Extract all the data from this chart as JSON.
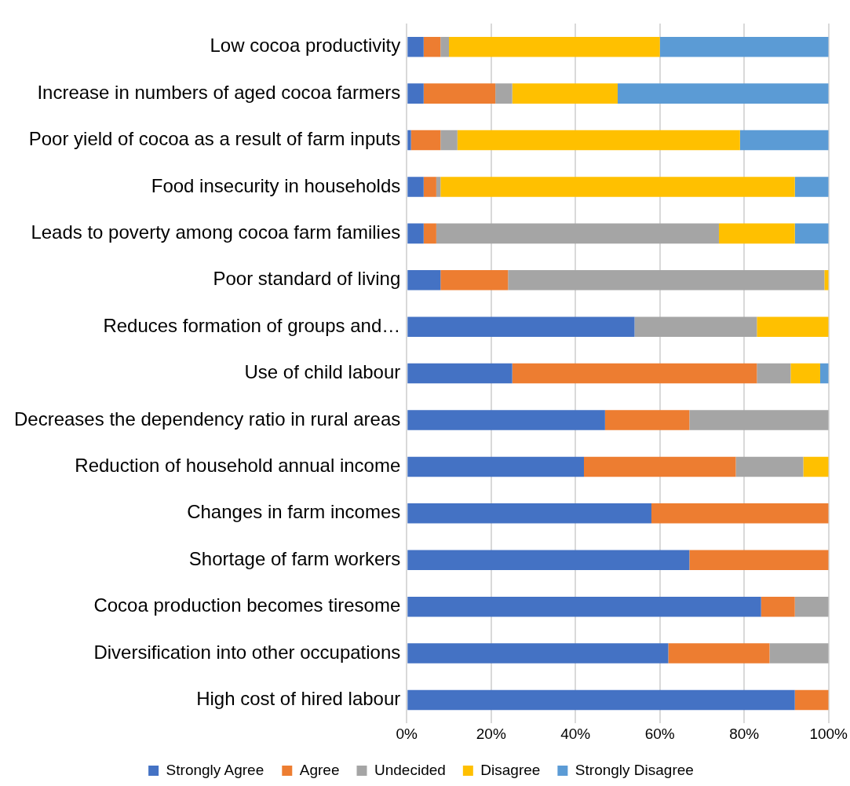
{
  "chart_data": {
    "type": "bar",
    "orientation": "horizontal",
    "stacked": true,
    "categories": [
      "Low cocoa productivity",
      "Increase in numbers of aged cocoa farmers",
      "Poor yield of cocoa as a result of farm inputs",
      "Food insecurity in households",
      "Leads to poverty among cocoa farm families",
      "Poor standard of living",
      "Reduces formation of groups and…",
      "Use of child labour",
      "Decreases the dependency ratio in rural areas",
      "Reduction of household annual income",
      "Changes in farm incomes",
      "Shortage of farm workers",
      "Cocoa production becomes tiresome",
      "Diversification into other occupations",
      "High cost of hired labour"
    ],
    "series": [
      {
        "name": "Strongly Agree",
        "color": "#4472c4",
        "values": [
          4,
          4,
          1,
          4,
          4,
          8,
          54,
          25,
          47,
          42,
          58,
          67,
          84,
          62,
          92
        ]
      },
      {
        "name": "Agree",
        "color": "#ed7d31",
        "values": [
          4,
          17,
          7,
          3,
          3,
          16,
          0,
          58,
          20,
          36,
          42,
          33,
          8,
          24,
          8
        ]
      },
      {
        "name": "Undecided",
        "color": "#a5a5a5",
        "values": [
          2,
          4,
          4,
          1,
          67,
          75,
          29,
          8,
          33,
          16,
          0,
          0,
          8,
          14,
          0
        ]
      },
      {
        "name": "Disagree",
        "color": "#ffc000",
        "values": [
          50,
          25,
          67,
          84,
          18,
          1,
          17,
          7,
          0,
          6,
          0,
          0,
          0,
          0,
          0
        ]
      },
      {
        "name": "Strongly Disagree",
        "color": "#5b9bd5",
        "values": [
          40,
          50,
          21,
          8,
          8,
          0,
          0,
          2,
          0,
          0,
          0,
          0,
          0,
          0,
          0
        ]
      }
    ],
    "xlim": [
      0,
      100
    ],
    "xticks": [
      {
        "value": 0,
        "label": "0%"
      },
      {
        "value": 20,
        "label": "20%"
      },
      {
        "value": 40,
        "label": "40%"
      },
      {
        "value": 60,
        "label": "60%"
      },
      {
        "value": 80,
        "label": "80%"
      },
      {
        "value": 100,
        "label": "100%"
      }
    ],
    "grid": "x",
    "legend": "bottom"
  }
}
